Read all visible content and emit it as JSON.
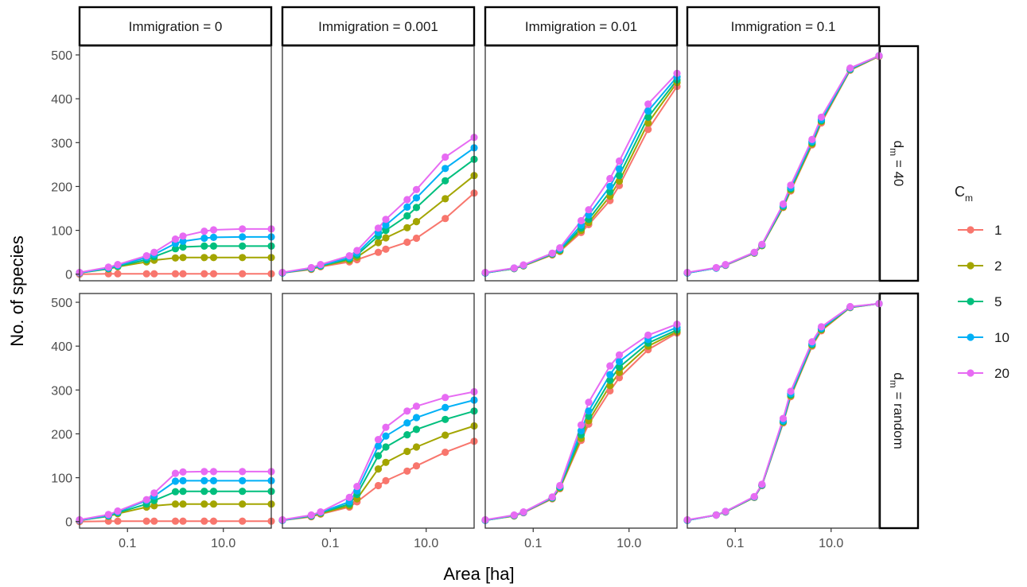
{
  "chart_data": {
    "type": "line",
    "xlabel": "Area [ha]",
    "ylabel": "No. of species",
    "x_scale": "log10",
    "xlim": [
      0.01,
      100
    ],
    "ylim": [
      -15,
      520
    ],
    "x_ticks": [
      0.1,
      10
    ],
    "x_tick_labels": [
      "0.1",
      "10.0"
    ],
    "y_ticks": [
      0,
      100,
      200,
      300,
      400,
      500
    ],
    "y_tick_labels": [
      "0",
      "100",
      "200",
      "300",
      "400",
      "500"
    ],
    "legend": {
      "title_main": "C",
      "title_sub": "m",
      "position": "right",
      "entries": [
        "1",
        "2",
        "5",
        "10",
        "20"
      ],
      "colors": [
        "#F8766D",
        "#A3A500",
        "#00BF7D",
        "#00B0F6",
        "#E76BF3"
      ]
    },
    "columns": [
      "Immigration = 0",
      "Immigration = 0.001",
      "Immigration = 0.01",
      "Immigration = 0.1"
    ],
    "rows": [
      {
        "main": "d",
        "sub": "m",
        "rest": " = 40"
      },
      {
        "main": "d",
        "sub": "m",
        "rest": " = random"
      }
    ],
    "x": [
      0.01,
      0.04,
      0.0625,
      0.25,
      0.36,
      1,
      1.44,
      4,
      6.25,
      25,
      100
    ],
    "panels": [
      {
        "row": 0,
        "col": 0,
        "series": [
          {
            "name": "1",
            "values": [
              0,
              1,
              1,
              1,
              1,
              1,
              1,
              1,
              1,
              1,
              1
            ]
          },
          {
            "name": "2",
            "values": [
              3,
              12,
              17,
              28,
              32,
              37,
              38,
              38,
              38,
              38,
              38
            ]
          },
          {
            "name": "5",
            "values": [
              3,
              13,
              18,
              33,
              40,
              58,
              62,
              64,
              64,
              64,
              64
            ]
          },
          {
            "name": "10",
            "values": [
              3,
              14,
              20,
              38,
              45,
              70,
              75,
              82,
              84,
              85,
              85
            ]
          },
          {
            "name": "20",
            "values": [
              4,
              16,
              22,
              42,
              50,
              80,
              87,
              98,
              101,
              103,
              103
            ]
          }
        ]
      },
      {
        "row": 0,
        "col": 1,
        "series": [
          {
            "name": "1",
            "values": [
              3,
              11,
              17,
              28,
              33,
              50,
              57,
              73,
              82,
              127,
              185
            ]
          },
          {
            "name": "2",
            "values": [
              3,
              12,
              18,
              32,
              39,
              72,
              83,
              106,
              120,
              172,
              225
            ]
          },
          {
            "name": "5",
            "values": [
              3,
              13,
              19,
              35,
              44,
              87,
              100,
              133,
              152,
              213,
              262
            ]
          },
          {
            "name": "10",
            "values": [
              3,
              14,
              20,
              38,
              48,
              95,
              112,
              153,
              174,
              241,
              288
            ]
          },
          {
            "name": "20",
            "values": [
              4,
              15,
              22,
              42,
              54,
              105,
              125,
              170,
              193,
              267,
              312
            ]
          }
        ]
      },
      {
        "row": 0,
        "col": 2,
        "series": [
          {
            "name": "1",
            "values": [
              3,
              13,
              19,
              44,
              52,
              95,
              113,
              168,
              202,
              330,
              428
            ]
          },
          {
            "name": "2",
            "values": [
              3,
              13,
              19,
              45,
              53,
              100,
              118,
              178,
              212,
              345,
              437
            ]
          },
          {
            "name": "5",
            "values": [
              3,
              13,
              20,
              46,
              55,
              105,
              125,
              188,
              225,
              358,
              443
            ]
          },
          {
            "name": "10",
            "values": [
              3,
              14,
              20,
              47,
              57,
              112,
              135,
              200,
              240,
              372,
              450
            ]
          },
          {
            "name": "20",
            "values": [
              4,
              14,
              21,
              48,
              60,
              122,
              147,
              218,
              258,
              388,
              458
            ]
          }
        ]
      },
      {
        "row": 0,
        "col": 3,
        "series": [
          {
            "name": "1",
            "values": [
              3,
              14,
              20,
              48,
              65,
              152,
              190,
              295,
              345,
              465,
              497
            ]
          },
          {
            "name": "2",
            "values": [
              3,
              14,
              21,
              48,
              65,
              153,
              192,
              297,
              348,
              466,
              497
            ]
          },
          {
            "name": "5",
            "values": [
              3,
              14,
              21,
              49,
              66,
              155,
              195,
              300,
              350,
              467,
              498
            ]
          },
          {
            "name": "10",
            "values": [
              3,
              14,
              21,
              49,
              67,
              157,
              198,
              303,
              353,
              468,
              498
            ]
          },
          {
            "name": "20",
            "values": [
              4,
              15,
              22,
              50,
              68,
              160,
              203,
              307,
              358,
              470,
              498
            ]
          }
        ]
      },
      {
        "row": 1,
        "col": 0,
        "series": [
          {
            "name": "1",
            "values": [
              0,
              1,
              1,
              1,
              1,
              1,
              1,
              1,
              1,
              1,
              1
            ]
          },
          {
            "name": "2",
            "values": [
              3,
              12,
              18,
              33,
              36,
              40,
              40,
              40,
              40,
              40,
              40
            ]
          },
          {
            "name": "5",
            "values": [
              3,
              13,
              20,
              40,
              48,
              68,
              69,
              69,
              69,
              69,
              69
            ]
          },
          {
            "name": "10",
            "values": [
              3,
              14,
              22,
              48,
              58,
              92,
              93,
              93,
              93,
              93,
              93
            ]
          },
          {
            "name": "20",
            "values": [
              4,
              16,
              24,
              50,
              65,
              110,
              113,
              114,
              114,
              114,
              114
            ]
          }
        ]
      },
      {
        "row": 1,
        "col": 1,
        "series": [
          {
            "name": "1",
            "values": [
              3,
              11,
              17,
              33,
              45,
              82,
              93,
              115,
              127,
              158,
              183
            ]
          },
          {
            "name": "2",
            "values": [
              3,
              12,
              18,
              36,
              52,
              120,
              135,
              160,
              170,
              197,
              218
            ]
          },
          {
            "name": "5",
            "values": [
              3,
              13,
              20,
              40,
              62,
              150,
              170,
              198,
              210,
              233,
              252
            ]
          },
          {
            "name": "10",
            "values": [
              3,
              14,
              21,
              45,
              70,
              172,
              195,
              225,
              237,
              260,
              277
            ]
          },
          {
            "name": "20",
            "values": [
              4,
              15,
              22,
              55,
              80,
              187,
              215,
              252,
              263,
              283,
              296
            ]
          }
        ]
      },
      {
        "row": 1,
        "col": 2,
        "series": [
          {
            "name": "1",
            "values": [
              3,
              13,
              20,
              52,
              75,
              185,
              222,
              298,
              328,
              392,
              430
            ]
          },
          {
            "name": "2",
            "values": [
              3,
              13,
              21,
              53,
              76,
              190,
              230,
              310,
              340,
              400,
              433
            ]
          },
          {
            "name": "5",
            "values": [
              3,
              14,
              21,
              54,
              78,
              198,
              240,
              322,
              352,
              407,
              437
            ]
          },
          {
            "name": "10",
            "values": [
              3,
              14,
              21,
              55,
              80,
              207,
              252,
              335,
              365,
              415,
              443
            ]
          },
          {
            "name": "20",
            "values": [
              4,
              15,
              22,
              56,
              82,
              220,
              272,
              355,
              380,
              425,
              450
            ]
          }
        ]
      },
      {
        "row": 1,
        "col": 3,
        "series": [
          {
            "name": "1",
            "values": [
              3,
              15,
              22,
              55,
              82,
              225,
              285,
              400,
              435,
              488,
              497
            ]
          },
          {
            "name": "2",
            "values": [
              3,
              15,
              22,
              55,
              83,
              227,
              287,
              402,
              437,
              488,
              497
            ]
          },
          {
            "name": "5",
            "values": [
              3,
              15,
              22,
              56,
              83,
              228,
              289,
              404,
              439,
              489,
              497
            ]
          },
          {
            "name": "10",
            "values": [
              3,
              15,
              23,
              56,
              84,
              230,
              292,
              406,
              441,
              489,
              497
            ]
          },
          {
            "name": "20",
            "values": [
              4,
              15,
              23,
              57,
              85,
              235,
              297,
              410,
              444,
              490,
              497
            ]
          }
        ]
      }
    ]
  }
}
